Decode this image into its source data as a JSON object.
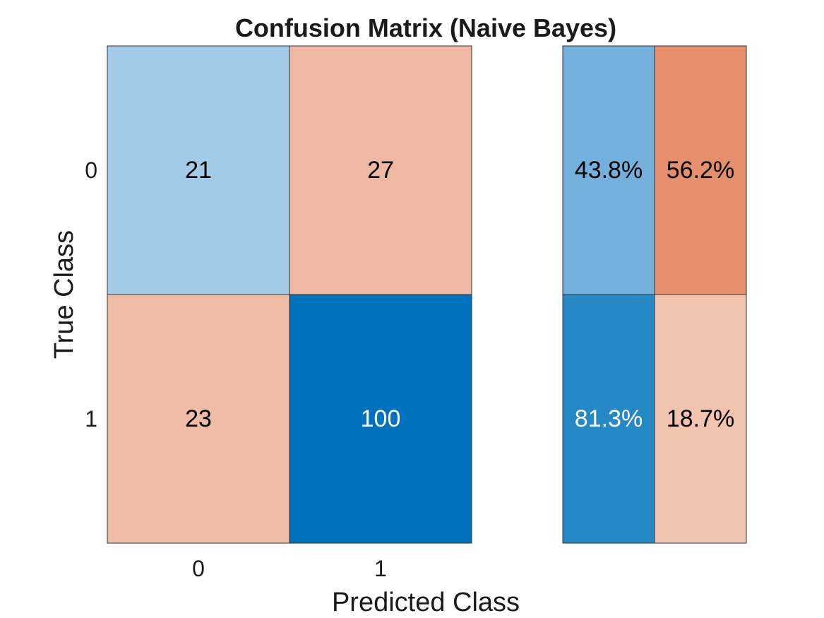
{
  "chart_data": {
    "type": "heatmap",
    "title": "Confusion Matrix (Naive Bayes)",
    "xlabel": "Predicted Class",
    "ylabel": "True Class",
    "x_tick_labels": [
      "0",
      "1"
    ],
    "y_tick_labels": [
      "0",
      "1"
    ],
    "matrix": [
      [
        21,
        27
      ],
      [
        23,
        100
      ]
    ],
    "row_summary": [
      [
        "43.8%",
        "56.2%"
      ],
      [
        "81.3%",
        "18.7%"
      ]
    ],
    "colors": {
      "matrix": [
        [
          "#a3cbe8",
          "#efb8a2"
        ],
        [
          "#efbca6",
          "#0072bd"
        ]
      ],
      "row_summary": [
        [
          "#73b0dc",
          "#e68f6c"
        ],
        [
          "#2589c8",
          "#f2c4b0"
        ]
      ],
      "matrix_text": [
        [
          "#000000",
          "#000000"
        ],
        [
          "#000000",
          "#ffffff"
        ]
      ],
      "row_summary_text": [
        [
          "#000000",
          "#000000"
        ],
        [
          "#ffffff",
          "#000000"
        ]
      ],
      "border": "#333333"
    }
  }
}
